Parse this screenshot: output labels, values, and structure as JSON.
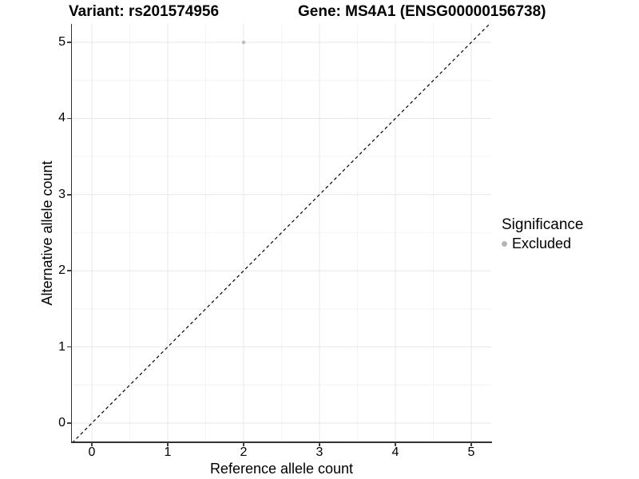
{
  "title": {
    "variant": "Variant: rs201574956",
    "gene": "Gene: MS4A1 (ENSG00000156738)"
  },
  "chart_data": {
    "type": "scatter",
    "xlabel": "Reference allele count",
    "ylabel": "Alternative allele count",
    "x_ticks": [
      0,
      1,
      2,
      3,
      4,
      5
    ],
    "y_ticks": [
      0,
      1,
      2,
      3,
      4,
      5
    ],
    "xlim": [
      -0.26,
      5.26
    ],
    "ylim": [
      -0.26,
      5.26
    ],
    "grid": "major and minor gridlines, light gray on white panel",
    "points": [
      {
        "x": 2,
        "y": 5,
        "series": "Excluded"
      }
    ],
    "reference_line": {
      "type": "identity y=x",
      "style": "dashed",
      "color": "#000000"
    },
    "legend": {
      "title": "Significance",
      "position": "right",
      "entries": [
        {
          "label": "Excluded",
          "color": "#b5b5b5"
        }
      ]
    },
    "colors": {
      "point": "#c0c0c0",
      "grid_major": "#e7e7e7",
      "grid_minor": "#f4f4f4",
      "axis": "#333333",
      "text": "#000000"
    }
  }
}
